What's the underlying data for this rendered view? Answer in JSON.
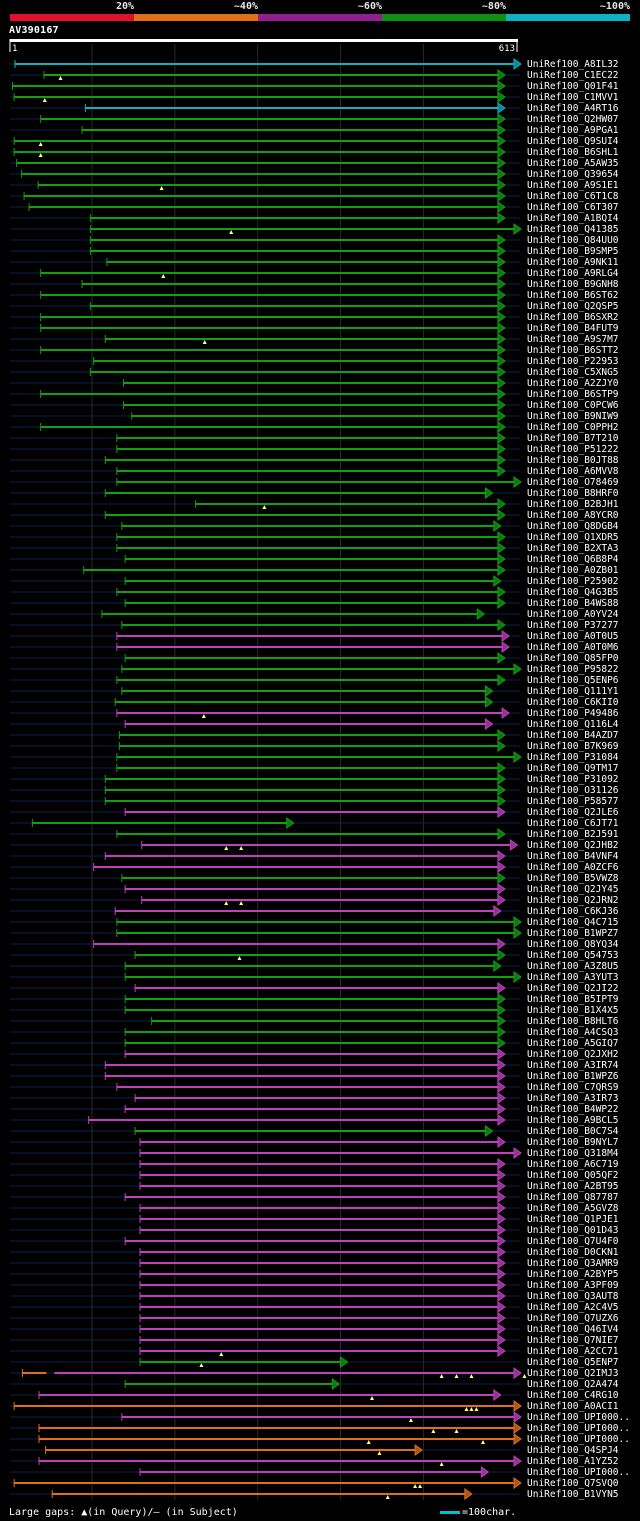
{
  "query": {
    "id": "AV390167",
    "length": 613,
    "start_label": "1",
    "end_label": "613"
  },
  "identity_legend": [
    {
      "label": "20%",
      "color": "#e0102a"
    },
    {
      "label": "~40%",
      "color": "#e07018"
    },
    {
      "label": "~60%",
      "color": "#902090"
    },
    {
      "label": "~80%",
      "color": "#109010"
    },
    {
      "label": "~100%",
      "color": "#10b0c0"
    }
  ],
  "footer": {
    "text": "Large gaps: ▲(in Query)/– (in Subject)",
    "scale_label": "=100char."
  },
  "chart_data": {
    "type": "alignment-overview",
    "title": "AV390167",
    "x_axis": {
      "min": 1,
      "max": 613,
      "unit": "query residue"
    },
    "hits": [
      {
        "name": "UniRef100_A8IL32",
        "start": 7,
        "end": 613,
        "color": "#10b0c0"
      },
      {
        "name": "UniRef100_C1EC22",
        "start": 42,
        "end": 590,
        "color": "#10a010",
        "gaps": [
          62
        ]
      },
      {
        "name": "UniRef100_Q01F41",
        "start": 4,
        "end": 590,
        "color": "#10a010"
      },
      {
        "name": "UniRef100_C1MVV1",
        "start": 6,
        "end": 590,
        "color": "#10a010",
        "gaps": [
          43
        ]
      },
      {
        "name": "UniRef100_A4RT16",
        "start": 92,
        "end": 590,
        "color": "#10b0c0"
      },
      {
        "name": "UniRef100_Q2HW07",
        "start": 38,
        "end": 590,
        "color": "#10a010"
      },
      {
        "name": "UniRef100_A9PGA1",
        "start": 88,
        "end": 590,
        "color": "#10a010"
      },
      {
        "name": "UniRef100_Q9SUI4",
        "start": 6,
        "end": 590,
        "color": "#10a010",
        "gaps": [
          38
        ]
      },
      {
        "name": "UniRef100_B6SHL1",
        "start": 6,
        "end": 590,
        "color": "#10a010",
        "gaps": [
          38
        ]
      },
      {
        "name": "UniRef100_A5AW35",
        "start": 9,
        "end": 590,
        "color": "#10a010"
      },
      {
        "name": "UniRef100_Q39654",
        "start": 15,
        "end": 590,
        "color": "#10a010"
      },
      {
        "name": "UniRef100_A9S1E1",
        "start": 35,
        "end": 590,
        "color": "#10a010",
        "gaps": [
          184
        ]
      },
      {
        "name": "UniRef100_C6T1C8",
        "start": 18,
        "end": 590,
        "color": "#10a010"
      },
      {
        "name": "UniRef100_C6T307",
        "start": 24,
        "end": 590,
        "color": "#10a010"
      },
      {
        "name": "UniRef100_A1BQI4",
        "start": 98,
        "end": 590,
        "color": "#10a010"
      },
      {
        "name": "UniRef100_Q41385",
        "start": 98,
        "end": 613,
        "color": "#10a010",
        "gaps": [
          268
        ]
      },
      {
        "name": "UniRef100_Q84UU0",
        "start": 98,
        "end": 590,
        "color": "#10a010"
      },
      {
        "name": "UniRef100_B9SMP5",
        "start": 98,
        "end": 590,
        "color": "#10a010"
      },
      {
        "name": "UniRef100_A9NK11",
        "start": 118,
        "end": 590,
        "color": "#10a010"
      },
      {
        "name": "UniRef100_A9RLG4",
        "start": 38,
        "end": 590,
        "color": "#10a010",
        "gaps": [
          186
        ]
      },
      {
        "name": "UniRef100_B9GNH8",
        "start": 88,
        "end": 590,
        "color": "#10a010"
      },
      {
        "name": "UniRef100_B6ST62",
        "start": 38,
        "end": 590,
        "color": "#10a010"
      },
      {
        "name": "UniRef100_Q2QSP5",
        "start": 98,
        "end": 590,
        "color": "#10a010"
      },
      {
        "name": "UniRef100_B6SXR2",
        "start": 38,
        "end": 590,
        "color": "#10a010"
      },
      {
        "name": "UniRef100_B4FUT9",
        "start": 38,
        "end": 590,
        "color": "#10a010"
      },
      {
        "name": "UniRef100_A9S7M7",
        "start": 116,
        "end": 590,
        "color": "#10a010",
        "gaps": [
          236
        ]
      },
      {
        "name": "UniRef100_B6STT2",
        "start": 38,
        "end": 590,
        "color": "#10a010"
      },
      {
        "name": "UniRef100_P22953",
        "start": 102,
        "end": 590,
        "color": "#10a010"
      },
      {
        "name": "UniRef100_C5XNG5",
        "start": 98,
        "end": 590,
        "color": "#10a010"
      },
      {
        "name": "UniRef100_A2ZJY0",
        "start": 138,
        "end": 590,
        "color": "#10a010"
      },
      {
        "name": "UniRef100_B6STP9",
        "start": 38,
        "end": 590,
        "color": "#10a010"
      },
      {
        "name": "UniRef100_C0PCW6",
        "start": 138,
        "end": 590,
        "color": "#10a010"
      },
      {
        "name": "UniRef100_B9NIW9",
        "start": 148,
        "end": 590,
        "color": "#10a010"
      },
      {
        "name": "UniRef100_C0PPH2",
        "start": 38,
        "end": 590,
        "color": "#10a010"
      },
      {
        "name": "UniRef100_B7T210",
        "start": 130,
        "end": 590,
        "color": "#10a010"
      },
      {
        "name": "UniRef100_P51222",
        "start": 130,
        "end": 590,
        "color": "#10a010"
      },
      {
        "name": "UniRef100_B0JT88",
        "start": 116,
        "end": 590,
        "color": "#10a010"
      },
      {
        "name": "UniRef100_A6MVV8",
        "start": 130,
        "end": 590,
        "color": "#10a010"
      },
      {
        "name": "UniRef100_O78469",
        "start": 130,
        "end": 640,
        "color": "#10a010"
      },
      {
        "name": "UniRef100_B8HRF0",
        "start": 116,
        "end": 575,
        "color": "#10a010"
      },
      {
        "name": "UniRef100_B2BJH1",
        "start": 225,
        "end": 590,
        "color": "#10a010",
        "gaps": [
          308
        ]
      },
      {
        "name": "UniRef100_A8YCR0",
        "start": 116,
        "end": 590,
        "color": "#10a010"
      },
      {
        "name": "UniRef100_Q8DGB4",
        "start": 136,
        "end": 585,
        "color": "#10a010"
      },
      {
        "name": "UniRef100_Q1XDR5",
        "start": 130,
        "end": 590,
        "color": "#10a010"
      },
      {
        "name": "UniRef100_B2XTA3",
        "start": 130,
        "end": 590,
        "color": "#10a010"
      },
      {
        "name": "UniRef100_Q6B8P4",
        "start": 140,
        "end": 590,
        "color": "#10a010"
      },
      {
        "name": "UniRef100_A0ZB01",
        "start": 90,
        "end": 590,
        "color": "#10a010"
      },
      {
        "name": "UniRef100_P25902",
        "start": 140,
        "end": 585,
        "color": "#10a010"
      },
      {
        "name": "UniRef100_Q4G3B5",
        "start": 130,
        "end": 590,
        "color": "#10a010"
      },
      {
        "name": "UniRef100_B4WS88",
        "start": 140,
        "end": 590,
        "color": "#10a010"
      },
      {
        "name": "UniRef100_A0YV24",
        "start": 112,
        "end": 565,
        "color": "#10a010"
      },
      {
        "name": "UniRef100_P37277",
        "start": 136,
        "end": 590,
        "color": "#10a010"
      },
      {
        "name": "UniRef100_A0T0U5",
        "start": 130,
        "end": 595,
        "color": "#c040c0"
      },
      {
        "name": "UniRef100_A0T0M6",
        "start": 130,
        "end": 595,
        "color": "#c040c0"
      },
      {
        "name": "UniRef100_Q85FP0",
        "start": 140,
        "end": 590,
        "color": "#10a010"
      },
      {
        "name": "UniRef100_P95822",
        "start": 136,
        "end": 610,
        "color": "#10a010"
      },
      {
        "name": "UniRef100_Q5ENP6",
        "start": 130,
        "end": 590,
        "color": "#10a010"
      },
      {
        "name": "UniRef100_Q111Y1",
        "start": 136,
        "end": 575,
        "color": "#10a010"
      },
      {
        "name": "UniRef100_C6KII0",
        "start": 128,
        "end": 575,
        "color": "#10a010"
      },
      {
        "name": "UniRef100_P49486",
        "start": 130,
        "end": 595,
        "color": "#c040c0",
        "gaps": [
          235
        ]
      },
      {
        "name": "UniRef100_Q116L4",
        "start": 140,
        "end": 575,
        "color": "#c040c0"
      },
      {
        "name": "UniRef100_B4AZD7",
        "start": 133,
        "end": 590,
        "color": "#10a010"
      },
      {
        "name": "UniRef100_B7K969",
        "start": 133,
        "end": 590,
        "color": "#10a010"
      },
      {
        "name": "UniRef100_P31084",
        "start": 130,
        "end": 610,
        "color": "#10a010"
      },
      {
        "name": "UniRef100_Q9TM17",
        "start": 130,
        "end": 590,
        "color": "#10a010"
      },
      {
        "name": "UniRef100_P31092",
        "start": 116,
        "end": 590,
        "color": "#10a010"
      },
      {
        "name": "UniRef100_O31126",
        "start": 116,
        "end": 590,
        "color": "#10a010"
      },
      {
        "name": "UniRef100_P58577",
        "start": 116,
        "end": 590,
        "color": "#10a010"
      },
      {
        "name": "UniRef100_Q2JLE6",
        "start": 140,
        "end": 590,
        "color": "#c040c0"
      },
      {
        "name": "UniRef100_C6JT71",
        "start": 28,
        "end": 335,
        "color": "#10a010"
      },
      {
        "name": "UniRef100_B2J591",
        "start": 130,
        "end": 590,
        "color": "#10a010"
      },
      {
        "name": "UniRef100_Q2JHB2",
        "start": 160,
        "end": 605,
        "color": "#c040c0",
        "gaps": [
          262,
          280
        ]
      },
      {
        "name": "UniRef100_B4VNF4",
        "start": 116,
        "end": 590,
        "color": "#c040c0"
      },
      {
        "name": "UniRef100_A0ZCF6",
        "start": 102,
        "end": 590,
        "color": "#c040c0"
      },
      {
        "name": "UniRef100_B5VWZ8",
        "start": 136,
        "end": 590,
        "color": "#10a010"
      },
      {
        "name": "UniRef100_Q2JY45",
        "start": 140,
        "end": 590,
        "color": "#c040c0"
      },
      {
        "name": "UniRef100_Q2JRN2",
        "start": 160,
        "end": 590,
        "color": "#c040c0",
        "gaps": [
          262,
          280
        ]
      },
      {
        "name": "UniRef100_C6KJ36",
        "start": 128,
        "end": 585,
        "color": "#c040c0"
      },
      {
        "name": "UniRef100_Q4C715",
        "start": 130,
        "end": 610,
        "color": "#10a010"
      },
      {
        "name": "UniRef100_B1WPZ7",
        "start": 130,
        "end": 610,
        "color": "#10a010"
      },
      {
        "name": "UniRef100_Q8YQ34",
        "start": 102,
        "end": 590,
        "color": "#c040c0"
      },
      {
        "name": "UniRef100_Q54753",
        "start": 152,
        "end": 590,
        "color": "#10a010",
        "gaps": [
          278
        ]
      },
      {
        "name": "UniRef100_A3Z8U5",
        "start": 140,
        "end": 585,
        "color": "#10a010"
      },
      {
        "name": "UniRef100_A3YUT3",
        "start": 140,
        "end": 610,
        "color": "#10a010"
      },
      {
        "name": "UniRef100_Q2JI22",
        "start": 152,
        "end": 590,
        "color": "#c040c0"
      },
      {
        "name": "UniRef100_B5IPT9",
        "start": 140,
        "end": 590,
        "color": "#10a010"
      },
      {
        "name": "UniRef100_B1X4X5",
        "start": 140,
        "end": 590,
        "color": "#10a010"
      },
      {
        "name": "UniRef100_B8HLT6",
        "start": 172,
        "end": 590,
        "color": "#10a010"
      },
      {
        "name": "UniRef100_A4CSQ3",
        "start": 140,
        "end": 590,
        "color": "#10a010"
      },
      {
        "name": "UniRef100_A5GIQ7",
        "start": 140,
        "end": 590,
        "color": "#10a010"
      },
      {
        "name": "UniRef100_Q2JXH2",
        "start": 140,
        "end": 590,
        "color": "#c040c0"
      },
      {
        "name": "UniRef100_A3IR74",
        "start": 116,
        "end": 590,
        "color": "#c040c0"
      },
      {
        "name": "UniRef100_B1WPZ6",
        "start": 116,
        "end": 590,
        "color": "#c040c0"
      },
      {
        "name": "UniRef100_C7QRS9",
        "start": 130,
        "end": 590,
        "color": "#c040c0"
      },
      {
        "name": "UniRef100_A3IR73",
        "start": 152,
        "end": 590,
        "color": "#c040c0"
      },
      {
        "name": "UniRef100_B4WP22",
        "start": 140,
        "end": 590,
        "color": "#c040c0"
      },
      {
        "name": "UniRef100_A9BCL5",
        "start": 96,
        "end": 590,
        "color": "#c040c0"
      },
      {
        "name": "UniRef100_B0C7S4",
        "start": 152,
        "end": 575,
        "color": "#10a010"
      },
      {
        "name": "UniRef100_B9NYL7",
        "start": 158,
        "end": 590,
        "color": "#c040c0"
      },
      {
        "name": "UniRef100_Q318M4",
        "start": 158,
        "end": 617,
        "color": "#c040c0"
      },
      {
        "name": "UniRef100_A6C719",
        "start": 158,
        "end": 590,
        "color": "#c040c0"
      },
      {
        "name": "UniRef100_Q05QF2",
        "start": 158,
        "end": 590,
        "color": "#c040c0"
      },
      {
        "name": "UniRef100_A2BT95",
        "start": 158,
        "end": 590,
        "color": "#c040c0"
      },
      {
        "name": "UniRef100_Q87787",
        "start": 140,
        "end": 590,
        "color": "#c040c0"
      },
      {
        "name": "UniRef100_A5GVZ8",
        "start": 158,
        "end": 590,
        "color": "#c040c0"
      },
      {
        "name": "UniRef100_Q1PJE1",
        "start": 158,
        "end": 590,
        "color": "#c040c0"
      },
      {
        "name": "UniRef100_Q01D43",
        "start": 158,
        "end": 590,
        "color": "#c040c0"
      },
      {
        "name": "UniRef100_Q7U4F0",
        "start": 140,
        "end": 590,
        "color": "#c040c0"
      },
      {
        "name": "UniRef100_D0CKN1",
        "start": 158,
        "end": 590,
        "color": "#c040c0"
      },
      {
        "name": "UniRef100_Q3AMR9",
        "start": 158,
        "end": 590,
        "color": "#c040c0"
      },
      {
        "name": "UniRef100_A2BYP5",
        "start": 158,
        "end": 590,
        "color": "#c040c0"
      },
      {
        "name": "UniRef100_A3PF09",
        "start": 158,
        "end": 590,
        "color": "#c040c0"
      },
      {
        "name": "UniRef100_Q3AUT8",
        "start": 158,
        "end": 590,
        "color": "#c040c0"
      },
      {
        "name": "UniRef100_A2C4V5",
        "start": 158,
        "end": 590,
        "color": "#c040c0"
      },
      {
        "name": "UniRef100_Q7UZX6",
        "start": 158,
        "end": 590,
        "color": "#c040c0"
      },
      {
        "name": "UniRef100_Q46IV4",
        "start": 158,
        "end": 590,
        "color": "#c040c0"
      },
      {
        "name": "UniRef100_Q7NIE7",
        "start": 158,
        "end": 590,
        "color": "#c040c0"
      },
      {
        "name": "UniRef100_A2CC71",
        "start": 158,
        "end": 590,
        "color": "#c040c0",
        "gaps": [
          256
        ]
      },
      {
        "name": "UniRef100_Q5ENP7",
        "start": 158,
        "end": 400,
        "color": "#10a010",
        "gaps": [
          232
        ]
      },
      {
        "name": "UniRef100_Q2IMJ3",
        "start": 16,
        "end": 640,
        "color": "#c040c0",
        "left_color": "#e07018",
        "gaps": [
          522,
          540,
          558,
          622
        ]
      },
      {
        "name": "UniRef100_Q2A474",
        "start": 140,
        "end": 390,
        "color": "#10a010"
      },
      {
        "name": "UniRef100_C4RG10",
        "start": 36,
        "end": 585,
        "color": "#c040c0",
        "gaps": [
          438
        ]
      },
      {
        "name": "UniRef100_A0ACI1",
        "start": 6,
        "end": 640,
        "color": "#e07018",
        "gaps": [
          552,
          558,
          564
        ]
      },
      {
        "name": "UniRef100_UPI000..",
        "start": 136,
        "end": 640,
        "color": "#c040c0",
        "gaps": [
          485
        ]
      },
      {
        "name": "UniRef100_UPI000..",
        "start": 36,
        "end": 610,
        "color": "#e07018",
        "gaps": [
          512,
          540
        ]
      },
      {
        "name": "UniRef100_UPI000..",
        "start": 36,
        "end": 610,
        "color": "#e07018",
        "gaps": [
          434,
          572
        ]
      },
      {
        "name": "UniRef100_Q4SPJ4",
        "start": 44,
        "end": 490,
        "color": "#e07018",
        "gaps": [
          447
        ]
      },
      {
        "name": "UniRef100_A1YZ52",
        "start": 36,
        "end": 640,
        "color": "#c040c0",
        "gaps": [
          522
        ]
      },
      {
        "name": "UniRef100_UPI000..",
        "start": 158,
        "end": 570,
        "color": "#c040c0"
      },
      {
        "name": "UniRef100_Q7SVQ0",
        "start": 6,
        "end": 640,
        "color": "#e07018",
        "gaps": [
          490,
          496
        ]
      },
      {
        "name": "UniRef100_B1VYN5",
        "start": 52,
        "end": 550,
        "color": "#e07018",
        "gaps": [
          457
        ]
      }
    ]
  }
}
